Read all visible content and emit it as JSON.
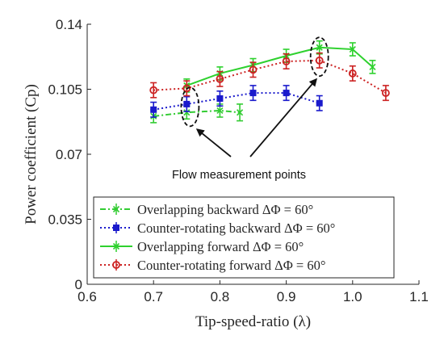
{
  "chart_data": {
    "type": "line",
    "xlabel": "Tip-speed-ratio (λ)",
    "ylabel": "Power coefficient (Cp)",
    "xlim": [
      0.6,
      1.1
    ],
    "ylim": [
      0,
      0.14
    ],
    "x_ticks": [
      "0.6",
      "0.7",
      "0.8",
      "0.9",
      "1.0",
      "1.1"
    ],
    "y_ticks": [
      "0",
      "0.035",
      "0.07",
      "0.105",
      "0.14"
    ],
    "grid": false,
    "legend_position": "bottom-center",
    "series": [
      {
        "name": "Overlapping backward ΔΦ = 60°",
        "color": "#33cc33",
        "line_style": "dash-dot",
        "marker": "x",
        "x": [
          0.7,
          0.75,
          0.8,
          0.83
        ],
        "y": [
          0.0905,
          0.0925,
          0.0935,
          0.0925
        ],
        "err": [
          0.0035,
          0.0035,
          0.0035,
          0.0045
        ]
      },
      {
        "name": "Counter-rotating backward ΔΦ = 60°",
        "color": "#1a1acc",
        "line_style": "dotted",
        "marker": "square",
        "x": [
          0.7,
          0.75,
          0.8,
          0.85,
          0.9,
          0.95
        ],
        "y": [
          0.094,
          0.097,
          0.1,
          0.103,
          0.103,
          0.0975
        ],
        "err": [
          0.004,
          0.004,
          0.004,
          0.004,
          0.004,
          0.004
        ]
      },
      {
        "name": "Overlapping forward ΔΦ = 60°",
        "color": "#2ed12e",
        "line_style": "solid",
        "marker": "x",
        "x": [
          0.75,
          0.8,
          0.85,
          0.9,
          0.95,
          1.0,
          1.03
        ],
        "y": [
          0.107,
          0.1135,
          0.118,
          0.123,
          0.1275,
          0.1265,
          0.117
        ],
        "err": [
          0.0035,
          0.0035,
          0.0035,
          0.0035,
          0.0035,
          0.0035,
          0.0035
        ]
      },
      {
        "name": "Counter-rotating forward ΔΦ = 60°",
        "color": "#cc2222",
        "line_style": "dotted",
        "marker": "circle",
        "x": [
          0.7,
          0.75,
          0.8,
          0.85,
          0.9,
          0.95,
          1.0,
          1.05
        ],
        "y": [
          0.1045,
          0.1055,
          0.1105,
          0.1155,
          0.12,
          0.1205,
          0.1135,
          0.103
        ],
        "err": [
          0.004,
          0.004,
          0.004,
          0.004,
          0.004,
          0.004,
          0.004,
          0.004
        ]
      }
    ],
    "annotation": {
      "text": "Flow measurement points",
      "targets": [
        {
          "x": 0.755,
          "y": 0.0955
        },
        {
          "x": 0.95,
          "y": 0.1225
        }
      ]
    }
  }
}
